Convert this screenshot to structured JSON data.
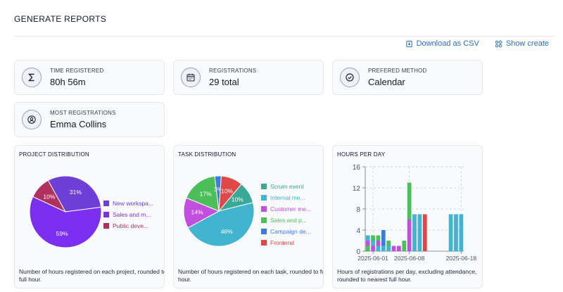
{
  "page": {
    "title": "GENERATE REPORTS"
  },
  "actions": {
    "download_csv": "Download as CSV",
    "show_create": "Show create"
  },
  "stats": [
    {
      "label": "TIME REGISTERED",
      "value": "80h 56m",
      "icon": "sigma-icon"
    },
    {
      "label": "REGISTRATIONS",
      "value": "29 total",
      "icon": "calendar-icon"
    },
    {
      "label": "PREFERED METHOD",
      "value": "Calendar",
      "icon": "check-circle-icon"
    },
    {
      "label": "MOST REGISTRATIONS",
      "value": "Emma Collins",
      "icon": "user-icon"
    }
  ],
  "charts": {
    "project": {
      "title": "PROJECT DISTRIBUTION",
      "description": "Number of hours registered on each project, rounded to full hour."
    },
    "task": {
      "title": "TASK DISTRIBUTION",
      "description": "Number of hours registered on each task, rounded to full hour."
    },
    "hours": {
      "title": "HOURS PER DAY",
      "description": "Hours of registrations per day, excluding attendance, rounded to nearest full hour."
    }
  },
  "chart_data": [
    {
      "type": "pie",
      "title": "PROJECT DISTRIBUTION",
      "slices": [
        {
          "name": "New workspa...",
          "value": 31,
          "label": "31%",
          "color": "#6d3fd6"
        },
        {
          "name": "Sales and m...",
          "value": 59,
          "label": "59%",
          "color": "#7b2ff0"
        },
        {
          "name": "Public deve...",
          "value": 10,
          "label": "10%",
          "color": "#b0305e"
        }
      ],
      "legend": "right"
    },
    {
      "type": "pie",
      "title": "TASK DISTRIBUTION",
      "slices": [
        {
          "name": "Scrum event",
          "value": 10,
          "label": "10%",
          "color": "#3aa896"
        },
        {
          "name": "Internal me...",
          "value": 46,
          "label": "46%",
          "color": "#41b4cf"
        },
        {
          "name": "Customer me...",
          "value": 14,
          "label": "14%",
          "color": "#c24ee0"
        },
        {
          "name": "Sales and p...",
          "value": 17,
          "label": "17%",
          "color": "#4cbe5a"
        },
        {
          "name": "Campaign de...",
          "value": 3,
          "label": "3%",
          "color": "#3d7be0"
        },
        {
          "name": "Frontend",
          "value": 10,
          "label": "10%",
          "color": "#e04848"
        }
      ],
      "legend": "right"
    },
    {
      "type": "bar",
      "title": "HOURS PER DAY",
      "ylim": [
        0,
        16
      ],
      "yticks": [
        "0",
        "4",
        "8",
        "12",
        "16"
      ],
      "xticks": [
        "2025-06-01",
        "2025-06-08",
        "2025-06-18"
      ],
      "grid": true,
      "bars": [
        {
          "segments": [
            {
              "value": 1,
              "color": "#4cbe5a"
            },
            {
              "value": 1,
              "color": "#c24ee0"
            },
            {
              "value": 1,
              "color": "#41b4cf"
            }
          ]
        },
        {
          "segments": [
            {
              "value": 1,
              "color": "#c24ee0"
            },
            {
              "value": 1,
              "color": "#41b4cf"
            },
            {
              "value": 1,
              "color": "#4cbe5a"
            }
          ]
        },
        {
          "segments": [
            {
              "value": 1,
              "color": "#41b4cf"
            },
            {
              "value": 1,
              "color": "#c24ee0"
            },
            {
              "value": 1,
              "color": "#4cbe5a"
            }
          ]
        },
        {
          "segments": [
            {
              "value": 1,
              "color": "#41b4cf"
            },
            {
              "value": 2,
              "color": "#3d7be0"
            },
            {
              "value": 1,
              "color": "#3d7be0"
            }
          ]
        },
        {
          "segments": [
            {
              "value": 1,
              "color": "#41b4cf"
            },
            {
              "value": 1,
              "color": "#4cbe5a"
            }
          ]
        },
        {
          "segments": [
            {
              "value": 1,
              "color": "#c24ee0"
            }
          ]
        },
        {
          "segments": [
            {
              "value": 1,
              "color": "#c24ee0"
            }
          ]
        },
        {
          "segments": [
            {
              "value": 2,
              "color": "#4cbe5a"
            }
          ]
        },
        {
          "segments": [
            {
              "value": 6,
              "color": "#c24ee0"
            },
            {
              "value": 7,
              "color": "#4cbe5a"
            }
          ]
        },
        {
          "segments": [
            {
              "value": 7,
              "color": "#41b4cf"
            }
          ]
        },
        {
          "segments": [
            {
              "value": 7,
              "color": "#41b4cf"
            }
          ]
        },
        {
          "segments": [
            {
              "value": 7,
              "color": "#e04848"
            }
          ]
        },
        {
          "segments": []
        },
        {
          "segments": []
        },
        {
          "segments": []
        },
        {
          "segments": []
        },
        {
          "segments": [
            {
              "value": 7,
              "color": "#41b4cf"
            }
          ]
        },
        {
          "segments": [
            {
              "value": 7,
              "color": "#41b4cf"
            }
          ]
        },
        {
          "segments": [
            {
              "value": 7,
              "color": "#41b4cf"
            }
          ]
        }
      ]
    }
  ]
}
